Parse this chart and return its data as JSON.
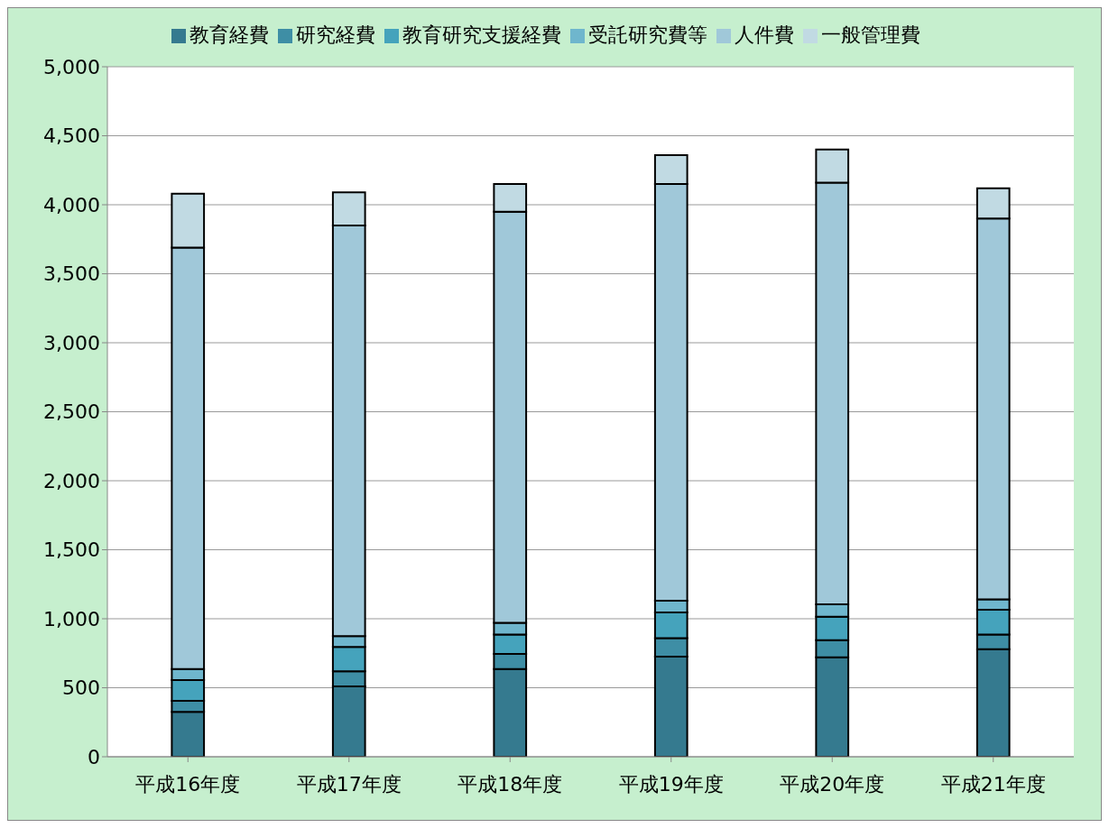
{
  "chart_data": {
    "type": "bar",
    "stacked": true,
    "categories": [
      "平成16年度",
      "平成17年度",
      "平成18年度",
      "平成19年度",
      "平成20年度",
      "平成21年度"
    ],
    "series": [
      {
        "name": "教育経費",
        "color": "#357a8f",
        "values": [
          325,
          510,
          635,
          725,
          720,
          780
        ]
      },
      {
        "name": "研究経費",
        "color": "#3e8ea5",
        "values": [
          80,
          110,
          110,
          135,
          125,
          105
        ]
      },
      {
        "name": "教育研究支援経費",
        "color": "#45a3bc",
        "values": [
          150,
          175,
          140,
          185,
          170,
          180
        ]
      },
      {
        "name": "受託研究費等",
        "color": "#6fb6cd",
        "values": [
          80,
          80,
          85,
          85,
          90,
          75
        ]
      },
      {
        "name": "人件費",
        "color": "#a0c8d9",
        "values": [
          3055,
          2975,
          2980,
          3020,
          3055,
          2760
        ]
      },
      {
        "name": "一般管理費",
        "color": "#c1dae3",
        "values": [
          390,
          240,
          200,
          210,
          240,
          220
        ]
      }
    ],
    "ylim": [
      0,
      5000
    ],
    "yticks": [
      {
        "value": 0,
        "label": "0"
      },
      {
        "value": 500,
        "label": "500"
      },
      {
        "value": 1000,
        "label": "1,000"
      },
      {
        "value": 1500,
        "label": "1,500"
      },
      {
        "value": 2000,
        "label": "2,000"
      },
      {
        "value": 2500,
        "label": "2,500"
      },
      {
        "value": 3000,
        "label": "3,000"
      },
      {
        "value": 3500,
        "label": "3,500"
      },
      {
        "value": 4000,
        "label": "4,000"
      },
      {
        "value": 4500,
        "label": "4,500"
      },
      {
        "value": 5000,
        "label": "5,000"
      }
    ],
    "grid": "y",
    "legend": "top"
  }
}
